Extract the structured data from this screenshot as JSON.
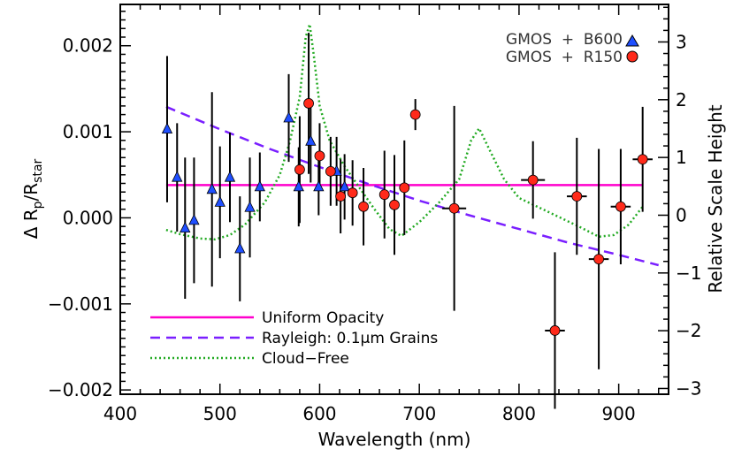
{
  "chart_data": {
    "type": "scatter",
    "xlabel": "Wavelength (nm)",
    "ylabel_main": "Δ R",
    "ylabel_sub1": "p",
    "ylabel_slash": "/R",
    "ylabel_sub2": "star",
    "y2label": "Relative Scale Height",
    "xlim": [
      400,
      950
    ],
    "ylim": [
      -0.00205,
      0.00248
    ],
    "y2lim": [
      -3.1,
      3.65
    ],
    "xticks": [
      400,
      500,
      600,
      700,
      800,
      900
    ],
    "yticks": [
      {
        "value": 0.002,
        "label": "0.002"
      },
      {
        "value": 0.001,
        "label": "0.001"
      },
      {
        "value": 0.0,
        "label": "0.000"
      },
      {
        "value": -0.001,
        "label": "−0.001"
      },
      {
        "value": -0.002,
        "label": "−0.002"
      }
    ],
    "y2ticks": [
      {
        "value": 3,
        "label": "3"
      },
      {
        "value": 2,
        "label": "2"
      },
      {
        "value": 1,
        "label": "1"
      },
      {
        "value": 0,
        "label": "0"
      },
      {
        "value": -1,
        "label": "−1"
      },
      {
        "value": -2,
        "label": "−2"
      },
      {
        "value": -3,
        "label": "−3"
      }
    ],
    "series": [
      {
        "name": "GMOS  +  B600",
        "marker": "triangle",
        "color": "#1f4fff",
        "points": [
          {
            "x": 447,
            "y": 0.00103,
            "err": 0.00085
          },
          {
            "x": 457,
            "y": 0.00047,
            "err": 0.00063
          },
          {
            "x": 465,
            "y": -0.00012,
            "err": 0.00082
          },
          {
            "x": 474,
            "y": -3e-05,
            "err": 0.00073
          },
          {
            "x": 492,
            "y": 0.00033,
            "err": 0.00113
          },
          {
            "x": 500,
            "y": 0.00018,
            "err": 0.00065
          },
          {
            "x": 510,
            "y": 0.00047,
            "err": 0.00052
          },
          {
            "x": 520,
            "y": -0.00036,
            "err": 0.00061
          },
          {
            "x": 530,
            "y": 0.00012,
            "err": 0.00058
          },
          {
            "x": 540,
            "y": 0.00036,
            "err": 0.0004
          },
          {
            "x": 569,
            "y": 0.00116,
            "err": 0.00051
          },
          {
            "x": 579,
            "y": 0.00036,
            "err": 0.00046
          },
          {
            "x": 591,
            "y": 0.00089,
            "err": 0.00048
          },
          {
            "x": 599,
            "y": 0.00036,
            "err": 0.00033
          },
          {
            "x": 617,
            "y": 0.00054,
            "err": 0.0004
          },
          {
            "x": 625,
            "y": 0.00036,
            "err": 0.00038
          }
        ]
      },
      {
        "name": "GMOS  +  R150",
        "marker": "circle",
        "color": "#ff2a1a",
        "points": [
          {
            "x": 580,
            "y": 0.00056,
            "err": 0.00062,
            "xerr": 0
          },
          {
            "x": 589,
            "y": 0.00133,
            "err": 0.00082,
            "xerr": 0
          },
          {
            "x": 600,
            "y": 0.00072,
            "err": 0.00038,
            "xerr": 0
          },
          {
            "x": 611,
            "y": 0.00054,
            "err": 0.0004,
            "xerr": 0
          },
          {
            "x": 621,
            "y": 0.00025,
            "err": 0.00043,
            "xerr": 0
          },
          {
            "x": 633,
            "y": 0.00029,
            "err": 0.00038,
            "xerr": 0
          },
          {
            "x": 644,
            "y": 0.00013,
            "err": 0.00045,
            "xerr": 0
          },
          {
            "x": 665,
            "y": 0.00027,
            "err": 0.00051,
            "xerr": 0
          },
          {
            "x": 675,
            "y": 0.00015,
            "err": 0.00058,
            "xerr": 0
          },
          {
            "x": 685,
            "y": 0.00035,
            "err": 0.00055,
            "xerr": 0
          },
          {
            "x": 696,
            "y": 0.0012,
            "err": 0.00018,
            "xerr": 0
          },
          {
            "x": 735,
            "y": 0.00011,
            "err": 0.00119,
            "xerr": 12
          },
          {
            "x": 814,
            "y": 0.00044,
            "err": 0.00045,
            "xerr": 12
          },
          {
            "x": 836,
            "y": -0.00131,
            "err": 0.00091,
            "xerr": 10
          },
          {
            "x": 858,
            "y": 0.00025,
            "err": 0.00068,
            "xerr": 10
          },
          {
            "x": 880,
            "y": -0.00048,
            "err": 0.00128,
            "xerr": 10
          },
          {
            "x": 902,
            "y": 0.00013,
            "err": 0.00067,
            "xerr": 10
          },
          {
            "x": 924,
            "y": 0.00068,
            "err": 0.00061,
            "xerr": 10
          }
        ]
      }
    ],
    "models": [
      {
        "name": "Uniform Opacity",
        "color": "#ff00cc",
        "dash": "solid",
        "x": [
          446,
          924
        ],
        "y": [
          0.00038,
          0.00038
        ]
      },
      {
        "name": "Rayleigh: 0.1μm Grains",
        "color": "#7a1fff",
        "dash": "dashed",
        "x": [
          446,
          500,
          550,
          600,
          650,
          700,
          750,
          800,
          850,
          900,
          940
        ],
        "y": [
          0.00129,
          0.00103,
          0.0008,
          0.00059,
          0.00039,
          0.0002,
          3e-05,
          -0.00013,
          -0.00029,
          -0.00043,
          -0.00055
        ]
      },
      {
        "name": "Cloud−Free",
        "color": "#22aa22",
        "dash": "dotted",
        "x": [
          446,
          460,
          480,
          495,
          510,
          525,
          545,
          560,
          570,
          580,
          586,
          590,
          594,
          600,
          610,
          625,
          640,
          655,
          670,
          682,
          700,
          720,
          740,
          752,
          760,
          770,
          785,
          800,
          820,
          840,
          860,
          880,
          895,
          910,
          924
        ],
        "y": [
          -0.00014,
          -0.00019,
          -0.00024,
          -0.00025,
          -0.0002,
          -8e-05,
          0.00018,
          0.0005,
          0.00088,
          0.0014,
          0.0021,
          0.00225,
          0.0019,
          0.0013,
          0.0009,
          0.0006,
          0.00035,
          0.0001,
          -0.00013,
          -0.00021,
          -5e-05,
          0.00018,
          0.00045,
          0.0009,
          0.00104,
          0.0008,
          0.00045,
          0.00023,
          0.00012,
          1e-05,
          -0.0001,
          -0.00022,
          -0.0002,
          -8e-05,
          0.00013
        ]
      }
    ],
    "legend_placement": "bottom-left (models), top-right (data)"
  }
}
